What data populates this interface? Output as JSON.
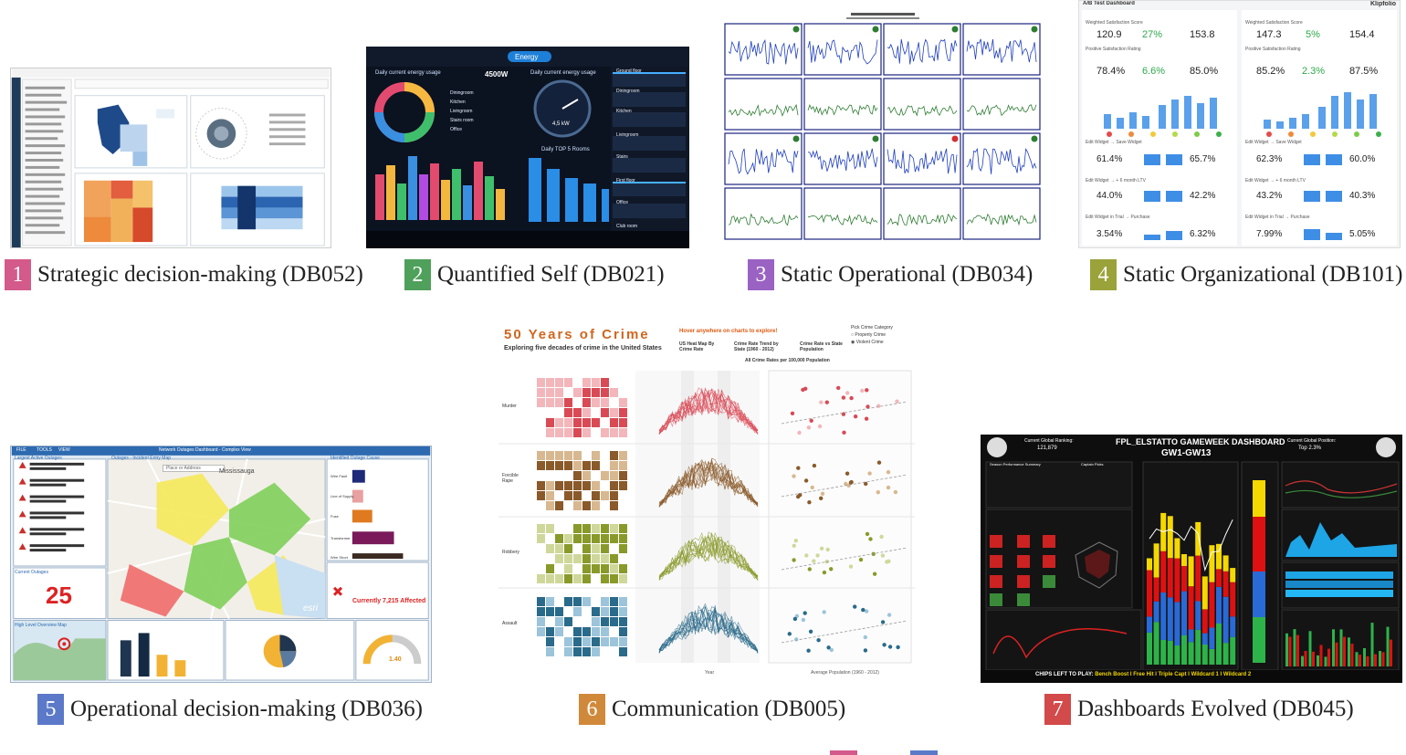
{
  "figures": [
    {
      "number": "1",
      "title": "Strategic decision-making (DB052)",
      "color": "#d35a8a"
    },
    {
      "number": "2",
      "title": "Quantified Self (DB021)",
      "color": "#4fa05a"
    },
    {
      "number": "3",
      "title": "Static Operational (DB034)",
      "color": "#9a62c3"
    },
    {
      "number": "4",
      "title": "Static Organizational (DB101)",
      "color": "#9aa23a"
    },
    {
      "number": "5",
      "title": "Operational decision-making (DB036)",
      "color": "#5b79c8"
    },
    {
      "number": "6",
      "title": "Communication (DB005)",
      "color": "#d0893a"
    },
    {
      "number": "7",
      "title": "Dashboards Evolved (DB045)",
      "color": "#d24a4a"
    }
  ],
  "db021": {
    "tab": "Energy",
    "left_title": "Daily current energy usage",
    "center_value": "4500W",
    "right_title": "Daily current energy usage",
    "gauge_value": "4,5 kW",
    "top_rooms": "Daily TOP 5 Rooms",
    "rooms": [
      "Diningroom",
      "Kitchen",
      "Livingroom",
      "Stairs room",
      "Office"
    ],
    "side_items": [
      "Ground floor",
      "Diningroom",
      "Kitchen",
      "Livingroom",
      "Stairs",
      "First floor",
      "Office",
      "Club room"
    ]
  },
  "db101": {
    "header_title": "A/B Test Dashboard",
    "brand": "Klipfolio",
    "panels": [
      {
        "score_label": "Weighted Satisfaction Score",
        "score_a": "120.9",
        "score_delta": "27%",
        "score_b": "153.8",
        "rating_label": "Positive Satisfaction Rating",
        "rating_a": "78.4%",
        "rating_delta": "6.6%",
        "rating_b": "85.0%",
        "funnels": [
          {
            "label": "Edit Widget → Save Widget",
            "a": "61.4%",
            "b": "65.7%"
          },
          {
            "label": "Edit Widget → + 6 month LTV",
            "a": "44.0%",
            "b": "42.2%"
          },
          {
            "label": "Edit Widget in Trial → Purchase",
            "a": "3.54%",
            "b": "6.32%"
          }
        ]
      },
      {
        "score_label": "Weighted Satisfaction Score",
        "score_a": "147.3",
        "score_delta": "5%",
        "score_b": "154.4",
        "rating_label": "Positive Satisfaction Rating",
        "rating_a": "85.2%",
        "rating_delta": "2.3%",
        "rating_b": "87.5%",
        "funnels": [
          {
            "label": "Edit Widget → Save Widget",
            "a": "62.3%",
            "b": "60.0%"
          },
          {
            "label": "Edit Widget → + 6 month LTV",
            "a": "43.2%",
            "b": "40.3%"
          },
          {
            "label": "Edit Widget in Trial → Purchase",
            "a": "7.99%",
            "b": "5.05%"
          }
        ]
      }
    ]
  },
  "db036": {
    "menu": [
      "FILE",
      "TOOLS",
      "VIEW"
    ],
    "window_title": "Network Outages Dashboard - Complex View",
    "left_panel_title": "Largest Active Outages",
    "map_title": "Outages - Incident Entry Map",
    "search_placeholder": "Place or Address",
    "right_panel_title": "Identified Outage Cause",
    "cause_labels": [
      "Wire Fault",
      "Line of Supply",
      "Fuse",
      "Transformer",
      "Wire Short"
    ],
    "current_outages_label": "Current Outages",
    "current_outages_value": "25",
    "affected_text": "Currently 7,215 Affected",
    "overview_label": "High Level Overview Map",
    "map_place": "Mississauga",
    "gauge_value": "1.40",
    "esri": "esri"
  },
  "db005": {
    "title": "50 Years of Crime",
    "subtitle": "Exploring five decades of crime in the United States",
    "hover_hint": "Hover anywhere on charts to explore!",
    "pick_label": "Pick Crime Category",
    "options": [
      "Property Crime",
      "Violent Crime"
    ],
    "col_heads": [
      "US Heat Map By Crime Rate",
      "Crime Rate Trend by State (1960 - 2012)",
      "Crime Rate vs State Population"
    ],
    "rates_note": "All Crime Rates per 100,000 Population",
    "rows": [
      "Murder",
      "Forcible Rape",
      "Robbery",
      "Assault"
    ],
    "x_label": "Year",
    "pop_label": "Average Population (1960 - 2012)"
  },
  "db045": {
    "title": "FPL_ELSTATTO GAMEWEEK DASHBOARD",
    "subtitle": "GW1-GW13",
    "rank_label": "Current Global Ranking:",
    "rank_value": "121,879",
    "position_label": "Current Global Position:",
    "position_value": "Top 2.3%",
    "season_label": "Season Performance Summary",
    "captain_label": "Captain Picks",
    "chips_prefix": "CHIPS LEFT TO PLAY:",
    "chips": "Bench Boost I Free Hit I Triple Capt I Wildcard 1 I Wildcard 2"
  }
}
